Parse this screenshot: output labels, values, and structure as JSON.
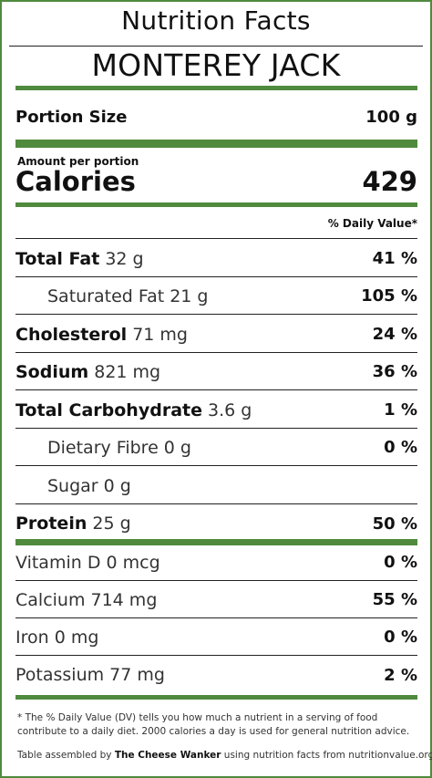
{
  "header": {
    "title": "Nutrition Facts",
    "product": "MONTEREY JACK"
  },
  "portion": {
    "label": "Portion Size",
    "value": "100 g"
  },
  "calories": {
    "amount_label": "Amount per portion",
    "label": "Calories",
    "value": "429"
  },
  "daily_value_header": "% Daily Value*",
  "nutrients": [
    {
      "name": "Total Fat",
      "amount": "32 g",
      "dv": "41 %"
    },
    {
      "name": "Saturated Fat 21 g",
      "amount": "",
      "dv": "105 %"
    },
    {
      "name": "Cholesterol",
      "amount": "71 mg",
      "dv": "24 %"
    },
    {
      "name": "Sodium",
      "amount": "821 mg",
      "dv": "36 %"
    },
    {
      "name": "Total Carbohydrate",
      "amount": "3.6 g",
      "dv": "1 %"
    },
    {
      "name": "Dietary Fibre 0 g",
      "amount": "",
      "dv": "0 %"
    },
    {
      "name": "Sugar 0 g",
      "amount": "",
      "dv": ""
    },
    {
      "name": "Protein",
      "amount": "25 g",
      "dv": "50 %"
    }
  ],
  "vitamins": [
    {
      "name": "Vitamin D 0 mcg",
      "dv": "0 %"
    },
    {
      "name": "Calcium 714 mg",
      "dv": "55 %"
    },
    {
      "name": "Iron 0 mg",
      "dv": "0 %"
    },
    {
      "name": "Potassium 77 mg",
      "dv": "2 %"
    }
  ],
  "footnote": "* The % Daily Value (DV) tells you how much a nutrient in a serving of food contribute to a daily diet. 2000 calories a day is used for general nutrition advice.",
  "credit": {
    "prefix": "Table assembled by ",
    "author": "The Cheese Wanker",
    "suffix": " using nutrition facts from nutritionvalue.org"
  },
  "colors": {
    "accent": "#4f8a3d",
    "rule": "#222222"
  }
}
